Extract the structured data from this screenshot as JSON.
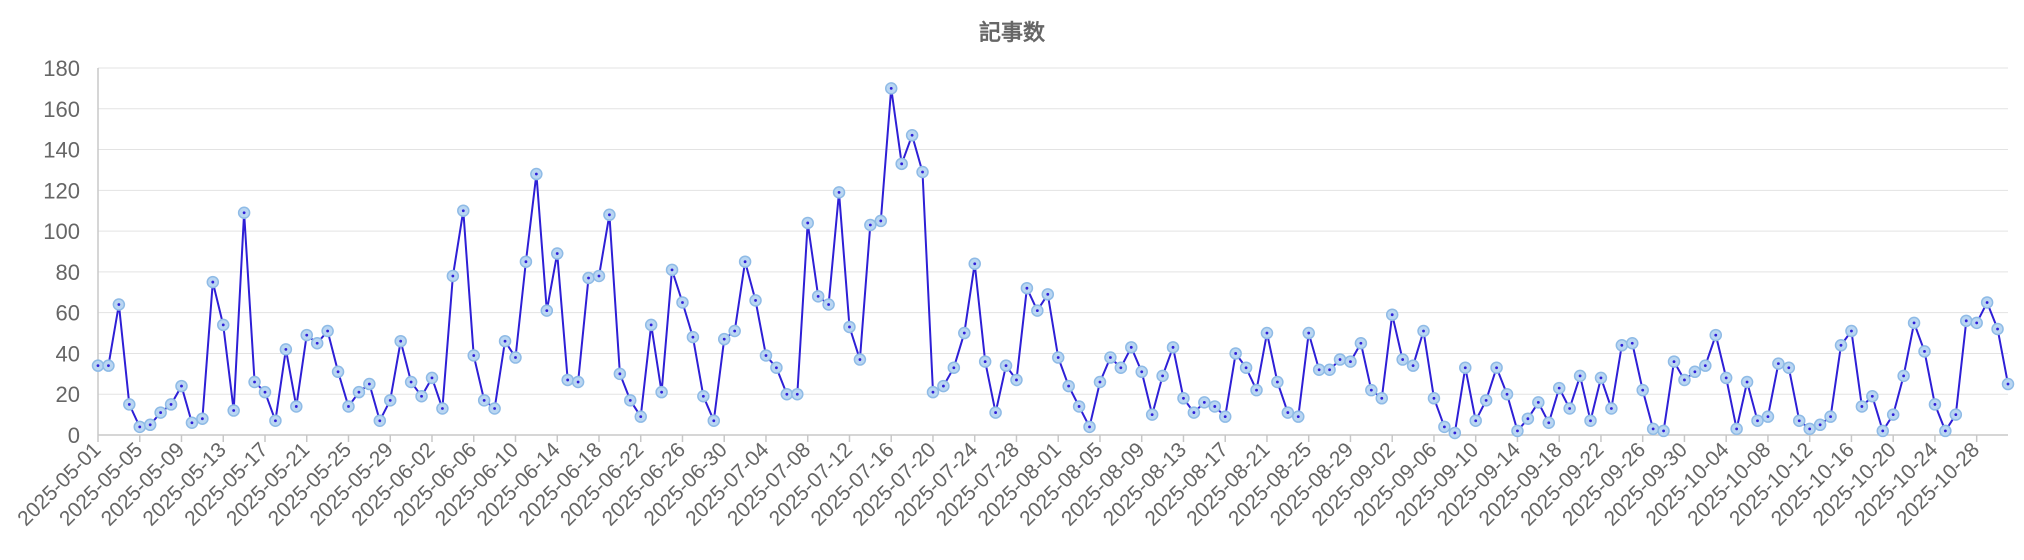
{
  "chart_data": {
    "type": "line",
    "title": "記事数",
    "xlabel": "",
    "ylabel": "",
    "ylim": [
      0,
      180
    ],
    "yticks": [
      0,
      20,
      40,
      60,
      80,
      100,
      120,
      140,
      160,
      180
    ],
    "grid": true,
    "legend": "none",
    "x_start": "2025-05-01",
    "x_end": "2025-10-31",
    "x_tick_labels": [
      "2025-05-01",
      "2025-05-05",
      "2025-05-09",
      "2025-05-13",
      "2025-05-17",
      "2025-05-21",
      "2025-05-25",
      "2025-05-29",
      "2025-06-02",
      "2025-06-06",
      "2025-06-10",
      "2025-06-14",
      "2025-06-18",
      "2025-06-22",
      "2025-06-26",
      "2025-06-30",
      "2025-07-04",
      "2025-07-08",
      "2025-07-12",
      "2025-07-16",
      "2025-07-20",
      "2025-07-24",
      "2025-07-28",
      "2025-08-01",
      "2025-08-05",
      "2025-08-09",
      "2025-08-13",
      "2025-08-17",
      "2025-08-21",
      "2025-08-25",
      "2025-08-29",
      "2025-09-02",
      "2025-09-06",
      "2025-09-10",
      "2025-09-14",
      "2025-09-18",
      "2025-09-22",
      "2025-09-26",
      "2025-09-30",
      "2025-10-04",
      "2025-10-08",
      "2025-10-12",
      "2025-10-16",
      "2025-10-20",
      "2025-10-24",
      "2025-10-28"
    ],
    "series": [
      {
        "color": "#2e1fd6",
        "marker_color": "#b9d6f2",
        "values": [
          34,
          34,
          64,
          15,
          4,
          5,
          11,
          15,
          24,
          6,
          8,
          75,
          54,
          12,
          109,
          26,
          21,
          7,
          42,
          14,
          49,
          45,
          51,
          31,
          14,
          21,
          25,
          7,
          17,
          46,
          26,
          19,
          28,
          13,
          78,
          110,
          39,
          17,
          13,
          46,
          38,
          85,
          128,
          61,
          89,
          27,
          26,
          77,
          78,
          108,
          30,
          17,
          9,
          54,
          21,
          81,
          65,
          48,
          19,
          7,
          47,
          51,
          85,
          66,
          39,
          33,
          20,
          20,
          104,
          68,
          64,
          119,
          53,
          37,
          103,
          105,
          170,
          133,
          147,
          129,
          21,
          24,
          33,
          50,
          84,
          36,
          11,
          34,
          27,
          72,
          61,
          69,
          38,
          24,
          14,
          4,
          26,
          38,
          33,
          43,
          31,
          10,
          29,
          43,
          18,
          11,
          16,
          14,
          9,
          40,
          33,
          22,
          50,
          26,
          11,
          9,
          50,
          32,
          32,
          37,
          36,
          45,
          22,
          18,
          59,
          37,
          34,
          51,
          18,
          4,
          1,
          33,
          7,
          17,
          33,
          20,
          2,
          8,
          16,
          6,
          23,
          13,
          29,
          7,
          28,
          13,
          44,
          45,
          22,
          3,
          2,
          36,
          27,
          31,
          34,
          49,
          28,
          3,
          26,
          7,
          9,
          35,
          33,
          7,
          3,
          5,
          9,
          44,
          51,
          14,
          19,
          2,
          10,
          29,
          55,
          41,
          15,
          2,
          10,
          56,
          55,
          65,
          52,
          25
        ]
      }
    ]
  }
}
